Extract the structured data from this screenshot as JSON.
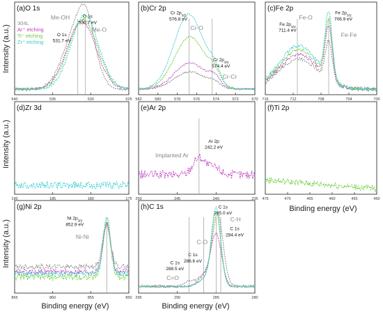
{
  "figure": {
    "ylabel": "Intensity (a.u.)",
    "xlabel": "Binding energy (eV)",
    "legend": [
      {
        "label": "304L",
        "color": "#8a8a8a"
      },
      {
        "label": "Ar⁺ etching",
        "color": "#c040c0"
      },
      {
        "label": "Ti⁺ etching",
        "color": "#66cc33"
      },
      {
        "label": "Zr⁺ etching",
        "color": "#33cccc"
      }
    ]
  },
  "chart_data": [
    {
      "type": "line",
      "title": "(a)O 1s",
      "xlim": [
        540,
        525
      ],
      "x_ticks": [
        540,
        535,
        530,
        525
      ],
      "grid": false,
      "series": [
        {
          "name": "304L",
          "color": "#8a8a8a",
          "peaks": [
            [
              531.7,
              0.72,
              1.8
            ],
            [
              530.5,
              0.35,
              1.0
            ]
          ],
          "noise": 0.015
        },
        {
          "name": "Ar⁺ etching",
          "color": "#c040c0",
          "peaks": [
            [
              531.2,
              0.78,
              1.9
            ]
          ],
          "noise": 0.015
        },
        {
          "name": "Ti⁺ etching",
          "color": "#66cc33",
          "peaks": [
            [
              531.0,
              0.8,
              1.9
            ]
          ],
          "noise": 0.015
        },
        {
          "name": "Zr⁺ etching",
          "color": "#33cccc",
          "peaks": [
            [
              530.8,
              0.85,
              1.8
            ]
          ],
          "noise": 0.015
        }
      ],
      "vlines": [
        531.7,
        530.7
      ],
      "annotations": [
        {
          "text": "Me-OH",
          "x": 534.0,
          "y": 0.84,
          "color": "#888888",
          "size": 8.5
        },
        {
          "text": "O 1s",
          "x": 530.4,
          "y": 0.86,
          "color": "#111111",
          "size": 6.5
        },
        {
          "text": "530.7 eV",
          "x": 530.4,
          "y": 0.79,
          "color": "#111111",
          "size": 6.5
        },
        {
          "text": "Me-O",
          "x": 528.9,
          "y": 0.7,
          "color": "#888888",
          "size": 8.5
        },
        {
          "text": "O 1s",
          "x": 533.8,
          "y": 0.65,
          "color": "#111111",
          "size": 6.5
        },
        {
          "text": "531.7 eV",
          "x": 533.8,
          "y": 0.58,
          "color": "#111111",
          "size": 6.5
        }
      ]
    },
    {
      "type": "line",
      "title": "(b)Cr 2p",
      "xlim": [
        582,
        570
      ],
      "x_ticks": [
        582,
        580,
        578,
        576,
        574,
        572,
        570
      ],
      "grid": false,
      "series": [
        {
          "name": "304L",
          "color": "#8a8a8a",
          "peaks": [
            [
              576.7,
              0.2,
              1.6
            ],
            [
              574.2,
              0.05,
              0.6
            ]
          ],
          "noise": 0.01
        },
        {
          "name": "Ar⁺ etching",
          "color": "#c040c0",
          "peaks": [
            [
              576.7,
              0.3,
              1.6
            ],
            [
              574.2,
              0.1,
              0.6
            ]
          ],
          "noise": 0.01
        },
        {
          "name": "Ti⁺ etching",
          "color": "#66cc33",
          "peaks": [
            [
              576.7,
              0.6,
              1.6
            ],
            [
              574.2,
              0.12,
              0.6
            ]
          ],
          "noise": 0.01
        },
        {
          "name": "Zr⁺ etching",
          "color": "#33cccc",
          "peaks": [
            [
              576.8,
              0.86,
              1.55
            ],
            [
              574.2,
              0.15,
              0.6
            ]
          ],
          "noise": 0.01
        }
      ],
      "vlines": [
        576.8,
        574.4
      ],
      "annotations": [
        {
          "text": "Cr 2p3/2",
          "x": 577.9,
          "y": 0.9,
          "color": "#111111",
          "size": 6.5
        },
        {
          "text": "576.8 eV",
          "x": 577.9,
          "y": 0.83,
          "color": "#111111",
          "size": 6.5
        },
        {
          "text": "Cr-O",
          "x": 576.0,
          "y": 0.72,
          "color": "#888888",
          "size": 8.5
        },
        {
          "text": "Cr 2p3/2",
          "x": 573.5,
          "y": 0.36,
          "color": "#111111",
          "size": 6.5
        },
        {
          "text": "574.4 eV",
          "x": 573.5,
          "y": 0.29,
          "color": "#111111",
          "size": 6.5
        },
        {
          "text": "Cr-Cr",
          "x": 572.6,
          "y": 0.16,
          "color": "#888888",
          "size": 8.5
        }
      ]
    },
    {
      "type": "line",
      "title": "(c)Fe 2p",
      "xlim": [
        716,
        700
      ],
      "x_ticks": [
        716,
        712,
        708,
        704,
        700
      ],
      "grid": false,
      "series": [
        {
          "name": "304L",
          "color": "#8a8a8a",
          "peaks": [
            [
              711.2,
              0.35,
              2.8
            ],
            [
              706.9,
              0.45,
              0.5
            ]
          ],
          "noise": 0.02
        },
        {
          "name": "Ar⁺ etching",
          "color": "#c040c0",
          "peaks": [
            [
              711.2,
              0.4,
              2.8
            ],
            [
              706.9,
              0.62,
              0.5
            ]
          ],
          "noise": 0.02
        },
        {
          "name": "Ti⁺ etching",
          "color": "#66cc33",
          "peaks": [
            [
              711.2,
              0.45,
              2.8
            ],
            [
              706.9,
              0.68,
              0.5
            ]
          ],
          "noise": 0.02
        },
        {
          "name": "Zr⁺ etching",
          "color": "#33cccc",
          "peaks": [
            [
              711.2,
              0.5,
              2.8
            ],
            [
              706.9,
              0.75,
              0.5
            ]
          ],
          "noise": 0.02
        }
      ],
      "vlines": [
        711.4,
        706.9
      ],
      "annotations": [
        {
          "text": "Fe 2p3/2",
          "x": 704.8,
          "y": 0.9,
          "color": "#111111",
          "size": 6.5
        },
        {
          "text": "706.9 eV",
          "x": 704.8,
          "y": 0.83,
          "color": "#111111",
          "size": 6.5
        },
        {
          "text": "Fe 2p3/2",
          "x": 712.8,
          "y": 0.77,
          "color": "#111111",
          "size": 6.5
        },
        {
          "text": "711.4 eV",
          "x": 712.8,
          "y": 0.7,
          "color": "#111111",
          "size": 6.5
        },
        {
          "text": "Fe-O",
          "x": 710.2,
          "y": 0.84,
          "color": "#888888",
          "size": 8.5
        },
        {
          "text": "Fe-Fe",
          "x": 704.0,
          "y": 0.64,
          "color": "#888888",
          "size": 8.5
        }
      ]
    },
    {
      "type": "line",
      "title": "(d)Zr 3d",
      "xlim": [
        190,
        175
      ],
      "x_ticks": [
        190,
        185,
        180,
        175
      ],
      "grid": false,
      "series": [
        {
          "name": "Zr⁺ etching",
          "color": "#33cccc",
          "baseline": 0.08,
          "peaks": [],
          "noise": 0.04
        }
      ],
      "vlines": [],
      "annotations": []
    },
    {
      "type": "line",
      "title": "(e)Ar 2p",
      "xlim": [
        250,
        235
      ],
      "x_ticks": [
        250,
        245,
        240,
        235
      ],
      "grid": false,
      "series": [
        {
          "name": "Ar⁺ etching",
          "color": "#c040c0",
          "baseline": 0.2,
          "peaks": [
            [
              242.2,
              0.2,
              0.8
            ],
            [
              240.2,
              0.08,
              0.8
            ]
          ],
          "noise": 0.05
        }
      ],
      "vlines": [
        242.2
      ],
      "annotations": [
        {
          "text": "Ar 2p",
          "x": 240.3,
          "y": 0.57,
          "color": "#111111",
          "size": 6.5
        },
        {
          "text": "242.2 eV",
          "x": 240.3,
          "y": 0.5,
          "color": "#111111",
          "size": 6.5
        },
        {
          "text": "Implanted Ar",
          "x": 245.7,
          "y": 0.4,
          "color": "#888888",
          "size": 8.5
        }
      ]
    },
    {
      "type": "line",
      "title": "(f)Ti 2p",
      "xlim": [
        475,
        450
      ],
      "x_ticks": [
        475,
        470,
        465,
        460,
        455,
        450
      ],
      "grid": false,
      "series": [
        {
          "name": "Ti⁺ etching",
          "color": "#66cc33",
          "baseline": 0.04,
          "slope": 0.1,
          "peaks": [],
          "noise": 0.035
        }
      ],
      "vlines": [],
      "annotations": []
    },
    {
      "type": "line",
      "title": "(g)Ni 2p",
      "xlim": [
        865,
        850
      ],
      "x_ticks": [
        865,
        860,
        855,
        850
      ],
      "grid": false,
      "series": [
        {
          "name": "304L",
          "color": "#8a8a8a",
          "baseline": 0.28,
          "peaks": [
            [
              852.9,
              0.5,
              0.5
            ]
          ],
          "noise": 0.03
        },
        {
          "name": "Ar⁺ etching",
          "color": "#c040c0",
          "baseline": 0.22,
          "peaks": [
            [
              852.9,
              0.55,
              0.5
            ]
          ],
          "noise": 0.03
        },
        {
          "name": "Ti⁺ etching",
          "color": "#66cc33",
          "baseline": 0.16,
          "peaks": [
            [
              852.9,
              0.62,
              0.5
            ]
          ],
          "noise": 0.035
        },
        {
          "name": "Zr⁺ etching",
          "color": "#33cccc",
          "baseline": 0.2,
          "peaks": [
            [
              852.9,
              0.65,
              0.5
            ]
          ],
          "noise": 0.03
        }
      ],
      "vlines": [
        852.9
      ],
      "annotations": [
        {
          "text": "Ni 2p3/2",
          "x": 857.1,
          "y": 0.82,
          "color": "#111111",
          "size": 6.5
        },
        {
          "text": "852.9 eV",
          "x": 857.1,
          "y": 0.75,
          "color": "#111111",
          "size": 6.5
        },
        {
          "text": "Ni-Ni",
          "x": 856.1,
          "y": 0.6,
          "color": "#888888",
          "size": 8.5
        }
      ]
    },
    {
      "type": "line",
      "title": "(h)C 1s",
      "xlim": [
        295,
        280
      ],
      "x_ticks": [
        295,
        290,
        285,
        280
      ],
      "grid": false,
      "series": [
        {
          "name": "304L",
          "color": "#8a8a8a",
          "baseline": 0.06,
          "peaks": [
            [
              284.8,
              0.82,
              0.7
            ],
            [
              286.6,
              0.12,
              0.8
            ],
            [
              288.5,
              0.05,
              0.6
            ]
          ],
          "noise": 0.01
        },
        {
          "name": "Ar⁺ etching",
          "color": "#c040c0",
          "baseline": 0.05,
          "peaks": [
            [
              285.0,
              0.6,
              0.7
            ],
            [
              286.6,
              0.1,
              0.8
            ]
          ],
          "noise": 0.01
        },
        {
          "name": "Ti⁺ etching",
          "color": "#66cc33",
          "baseline": 0.05,
          "peaks": [
            [
              285.0,
              0.85,
              0.6
            ],
            [
              286.6,
              0.08,
              0.8
            ]
          ],
          "noise": 0.01
        },
        {
          "name": "Zr⁺ etching",
          "color": "#33cccc",
          "baseline": 0.05,
          "peaks": [
            [
              285.0,
              0.9,
              0.6
            ],
            [
              286.6,
              0.08,
              0.8
            ]
          ],
          "noise": 0.01
        }
      ],
      "vlines": [
        288.5,
        286.6,
        285.0,
        284.4
      ],
      "annotations": [
        {
          "text": "C 1s",
          "x": 284.1,
          "y": 0.95,
          "color": "#111111",
          "size": 6.5
        },
        {
          "text": "285.0 eV",
          "x": 284.1,
          "y": 0.88,
          "color": "#111111",
          "size": 6.5
        },
        {
          "text": "C-H",
          "x": 282.5,
          "y": 0.8,
          "color": "#888888",
          "size": 8.5
        },
        {
          "text": "C 1s",
          "x": 282.6,
          "y": 0.7,
          "color": "#111111",
          "size": 6.5
        },
        {
          "text": "284.4 eV",
          "x": 282.6,
          "y": 0.63,
          "color": "#111111",
          "size": 6.5
        },
        {
          "text": "C-O",
          "x": 286.8,
          "y": 0.54,
          "color": "#888888",
          "size": 8.5
        },
        {
          "text": "C 1s",
          "x": 288.0,
          "y": 0.4,
          "color": "#111111",
          "size": 6.5
        },
        {
          "text": "286.6 eV",
          "x": 288.0,
          "y": 0.33,
          "color": "#111111",
          "size": 6.5
        },
        {
          "text": "C 1s",
          "x": 290.3,
          "y": 0.31,
          "color": "#111111",
          "size": 6.5
        },
        {
          "text": "288.5 eV",
          "x": 290.3,
          "y": 0.24,
          "color": "#111111",
          "size": 6.5
        },
        {
          "text": "C=O",
          "x": 290.6,
          "y": 0.13,
          "color": "#888888",
          "size": 8.5
        }
      ]
    }
  ]
}
